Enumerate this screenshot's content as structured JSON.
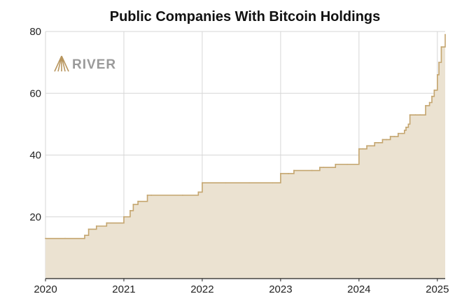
{
  "chart_data": {
    "type": "area",
    "title": "Public Companies With Bitcoin Holdings",
    "xlabel": "",
    "ylabel": "",
    "xlim": [
      2020,
      2025.1
    ],
    "ylim": [
      0,
      80
    ],
    "x_ticks": [
      "2020",
      "2021",
      "2022",
      "2023",
      "2024",
      "2025"
    ],
    "y_ticks": [
      "20",
      "40",
      "60",
      "80"
    ],
    "grid": true,
    "legend": "none",
    "step": true,
    "colors": {
      "line": "#c4a56e",
      "fill": "#ebe2d1",
      "grid": "#d6d6d6",
      "axis": "#222222"
    },
    "watermark": {
      "text": "RIVER",
      "icon": "river-logo-icon"
    },
    "series": [
      {
        "x": [
          2020.0,
          2020.25,
          2020.5,
          2020.55,
          2020.65,
          2020.78,
          2021.0,
          2021.08,
          2021.12,
          2021.18,
          2021.3,
          2021.35,
          2021.75,
          2021.95,
          2022.0,
          2022.3,
          2022.6,
          2022.9,
          2023.0,
          2023.1,
          2023.17,
          2023.4,
          2023.5,
          2023.55,
          2023.7,
          2023.85,
          2024.0,
          2024.05,
          2024.1,
          2024.2,
          2024.25,
          2024.3,
          2024.35,
          2024.4,
          2024.45,
          2024.5,
          2024.55,
          2024.58,
          2024.6,
          2024.63,
          2024.65,
          2024.72,
          2024.78,
          2024.85,
          2024.9,
          2024.93,
          2024.96,
          2025.0,
          2025.02,
          2025.05,
          2025.1
        ],
        "y": [
          13,
          13,
          14,
          16,
          17,
          18,
          20,
          22,
          24,
          25,
          27,
          27,
          27,
          28,
          31,
          31,
          31,
          31,
          34,
          34,
          35,
          35,
          36,
          36,
          37,
          37,
          42,
          42,
          43,
          44,
          44,
          45,
          45,
          46,
          46,
          47,
          47,
          48,
          49,
          50,
          53,
          53,
          53,
          56,
          57,
          59,
          61,
          66,
          70,
          75,
          79
        ]
      }
    ]
  }
}
